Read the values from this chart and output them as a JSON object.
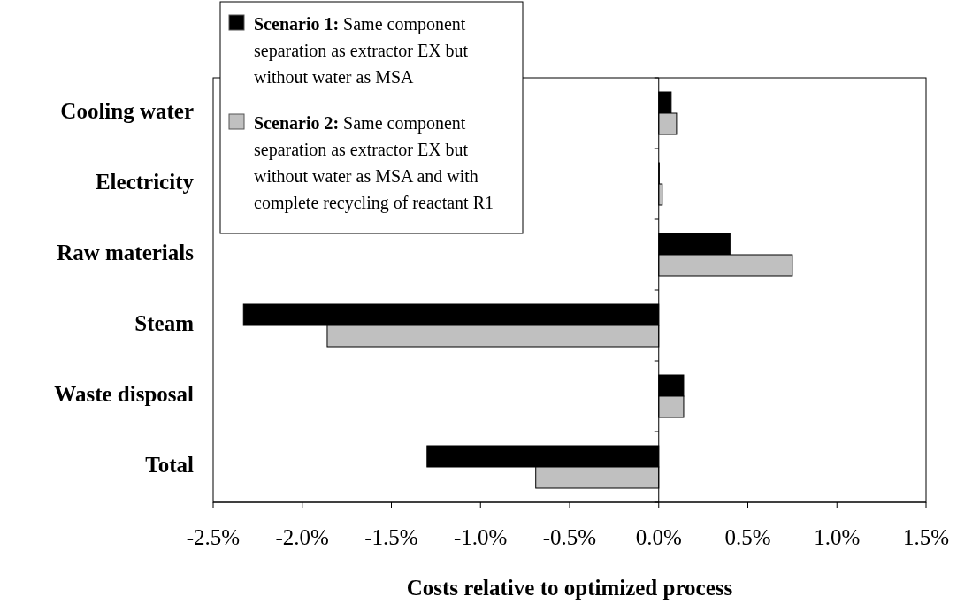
{
  "chart_data": {
    "type": "bar",
    "orientation": "horizontal",
    "xlabel": "Costs relative to optimized process",
    "categories": [
      "Cooling water",
      "Electricity",
      "Raw materials",
      "Steam",
      "Waste disposal",
      "Total"
    ],
    "series": [
      {
        "name": "Scenario 1: Same component separation as extractor EX but without water as MSA",
        "color": "#000000",
        "values": [
          0.07,
          0.003,
          0.4,
          -2.33,
          0.14,
          -1.3
        ]
      },
      {
        "name": "Scenario 2: Same component separation as extractor EX but without water as MSA and with complete recycling of reactant R1",
        "color": "#c0c0c0",
        "values": [
          0.1,
          0.02,
          0.75,
          -1.86,
          0.14,
          -0.69
        ]
      }
    ],
    "xlim": [
      -2.5,
      1.5
    ],
    "xticks": [
      {
        "value": -2.5,
        "label": "-2.5%"
      },
      {
        "value": -2,
        "label": "-2.0%"
      },
      {
        "value": -1.5,
        "label": "-1.5%"
      },
      {
        "value": -1,
        "label": "-1.0%"
      },
      {
        "value": -0.5,
        "label": "-0.5%"
      },
      {
        "value": 0,
        "label": "0.0%"
      },
      {
        "value": 0.5,
        "label": "0.5%"
      },
      {
        "value": 1,
        "label": "1.0%"
      },
      {
        "value": 1.5,
        "label": "1.5%"
      }
    ],
    "legend": "top left"
  }
}
